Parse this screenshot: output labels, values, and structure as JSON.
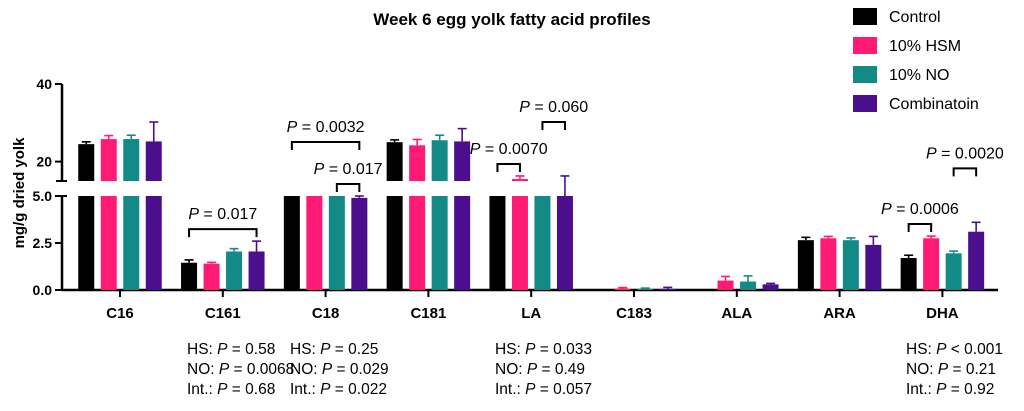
{
  "chart_data": {
    "type": "bar",
    "title": "Week 6 egg yolk fatty acid profiles",
    "ylabel": "mg/g dried yolk",
    "axis_break": true,
    "ylim_lower": [
      0,
      5
    ],
    "ylim_upper": [
      15,
      40
    ],
    "yticks_lower": [
      "0.0",
      "2.5",
      "5.0"
    ],
    "yticks_upper": [
      "20",
      "40"
    ],
    "legend_position": "top-right",
    "categories": [
      "C16",
      "C161",
      "C18",
      "C181",
      "LA",
      "C183",
      "ALA",
      "ARA",
      "DHA"
    ],
    "series": [
      {
        "name": "Control",
        "color": "#000000",
        "values": [
          24.5,
          1.45,
          11.8,
          25.0,
          11.8,
          0.03,
          0.03,
          2.65,
          1.7
        ],
        "errors": [
          0.6,
          0.15,
          0.5,
          0.6,
          0.6,
          0.02,
          0.02,
          0.15,
          0.15
        ]
      },
      {
        "name": "10% HSM",
        "color": "#ff1a75",
        "values": [
          25.8,
          1.4,
          13.2,
          24.2,
          15.5,
          0.08,
          0.5,
          2.75,
          2.75
        ],
        "errors": [
          0.9,
          0.07,
          0.7,
          1.5,
          0.8,
          0.05,
          0.22,
          0.1,
          0.12
        ]
      },
      {
        "name": "10% NO",
        "color": "#138a86",
        "values": [
          25.8,
          2.05,
          11.7,
          25.5,
          12.8,
          0.05,
          0.45,
          2.65,
          1.95
        ],
        "errors": [
          1.0,
          0.15,
          0.5,
          1.3,
          0.6,
          0.05,
          0.3,
          0.12,
          0.12
        ]
      },
      {
        "name": "Combinatoin",
        "color": "#4b0e8c",
        "values": [
          25.2,
          2.05,
          4.9,
          25.2,
          13.8,
          0.06,
          0.3,
          2.4,
          3.1
        ],
        "errors": [
          5.0,
          0.55,
          5.0,
          3.3,
          2.5,
          0.08,
          0.05,
          0.45,
          0.5
        ]
      }
    ],
    "annotations": [
      {
        "text_prefix": "P",
        "text_value": " = 0.017",
        "category": "C161",
        "from": 0,
        "to": 3,
        "level": 0
      },
      {
        "text_prefix": "P",
        "text_value": " = 0.0032",
        "category": "C18",
        "from": 0,
        "to": 3,
        "level": 1
      },
      {
        "text_prefix": "P",
        "text_value": " = 0.017",
        "category": "C18",
        "from": 2,
        "to": 3,
        "level": 0
      },
      {
        "text_prefix": "P",
        "text_value": " = 0.0070",
        "category": "LA",
        "from": 0,
        "to": 1,
        "level": 0
      },
      {
        "text_prefix": "P",
        "text_value": " = 0.060",
        "category": "LA",
        "from": 2,
        "to": 3,
        "level": 1
      },
      {
        "text_prefix": "P",
        "text_value": " = 0.0006",
        "category": "DHA",
        "from": 0,
        "to": 1,
        "level": 0
      },
      {
        "text_prefix": "P",
        "text_value": " = 0.0020",
        "category": "DHA",
        "from": 2,
        "to": 3,
        "level": 1
      }
    ]
  },
  "stats_blocks": [
    {
      "category": "C161",
      "lines": [
        {
          "label": "HS: ",
          "p": "P",
          "value": " = 0.58"
        },
        {
          "label": "NO: ",
          "p": "P",
          "value": " = 0.0068"
        },
        {
          "label": "Int.: ",
          "p": "P",
          "value": " = 0.68"
        }
      ]
    },
    {
      "category": "C18",
      "lines": [
        {
          "label": "HS: ",
          "p": "P",
          "value": " = 0.25"
        },
        {
          "label": "NO: ",
          "p": "P",
          "value": " = 0.029"
        },
        {
          "label": "Int.: ",
          "p": "P",
          "value": " = 0.022"
        }
      ]
    },
    {
      "category": "LA",
      "lines": [
        {
          "label": "HS: ",
          "p": "P",
          "value": " = 0.033"
        },
        {
          "label": "NO: ",
          "p": "P",
          "value": " = 0.49"
        },
        {
          "label": "Int.: ",
          "p": "P",
          "value": " = 0.057"
        }
      ]
    },
    {
      "category": "DHA",
      "lines": [
        {
          "label": "HS: ",
          "p": "P",
          "value": " < 0.001"
        },
        {
          "label": "NO: ",
          "p": "P",
          "value": " = 0.21"
        },
        {
          "label": "Int.: ",
          "p": "P",
          "value": " = 0.92"
        }
      ]
    }
  ]
}
